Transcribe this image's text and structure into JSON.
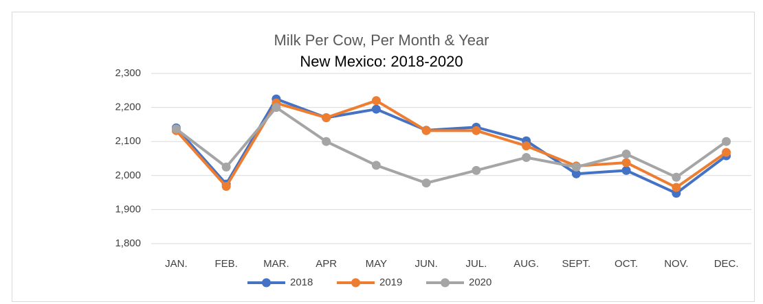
{
  "chart_data": {
    "type": "line",
    "title": "Milk Per Cow, Per Month & Year",
    "subtitle": "New Mexico: 2018-2020",
    "categories": [
      "JAN.",
      "FEB.",
      "MAR.",
      "APR",
      "MAY",
      "JUN.",
      "JUL.",
      "AUG.",
      "SEPT.",
      "OCT.",
      "NOV.",
      "DEC."
    ],
    "series": [
      {
        "name": "2018",
        "color": "#4472c4",
        "values": [
          2140,
          1975,
          2225,
          2170,
          2195,
          2133,
          2142,
          2102,
          2005,
          2015,
          1948,
          2058
        ]
      },
      {
        "name": "2019",
        "color": "#ed7d31",
        "values": [
          2132,
          1968,
          2213,
          2170,
          2220,
          2132,
          2132,
          2087,
          2028,
          2038,
          1965,
          2068
        ]
      },
      {
        "name": "2020",
        "color": "#a5a5a5",
        "values": [
          2137,
          2025,
          2200,
          2100,
          2030,
          1978,
          2015,
          2053,
          2025,
          2063,
          1995,
          2100
        ]
      }
    ],
    "ylim": [
      1800,
      2300
    ],
    "yticks": [
      {
        "value": 1800,
        "label": "1,800"
      },
      {
        "value": 1900,
        "label": "1,900"
      },
      {
        "value": 2000,
        "label": "2,000"
      },
      {
        "value": 2100,
        "label": "2,100"
      },
      {
        "value": 2200,
        "label": "2,200"
      },
      {
        "value": 2300,
        "label": "2,300"
      }
    ],
    "grid": true,
    "legend": "bottom"
  }
}
